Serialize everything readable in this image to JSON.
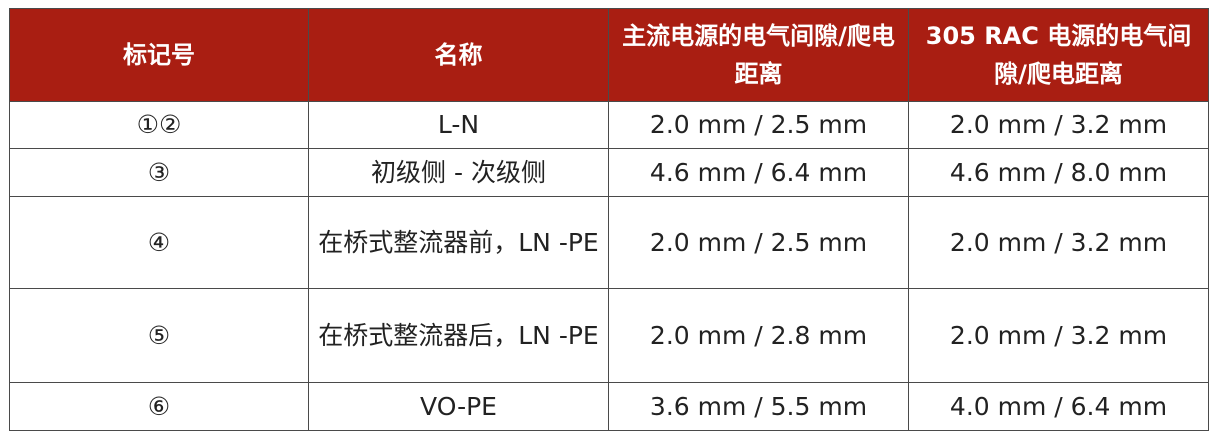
{
  "table": {
    "headers": [
      "标记号",
      "名称",
      "主流电源的电气间隙/爬电距离",
      "305 RAC 电源的电气间隙/爬电距离"
    ],
    "header_color": "#A91E12",
    "rows": [
      [
        "①②",
        "L-N",
        "2.0 mm / 2.5 mm",
        "2.0 mm / 3.2 mm"
      ],
      [
        "③",
        "初级侧 - 次级侧",
        "4.6 mm / 6.4 mm",
        "4.6 mm / 8.0 mm"
      ],
      [
        "④",
        "在桥式整流器前，LN -PE",
        "2.0 mm / 2.5 mm",
        "2.0 mm / 3.2 mm"
      ],
      [
        "⑤",
        "在桥式整流器后，LN -PE",
        "2.0 mm / 2.8 mm",
        "2.0 mm / 3.2 mm"
      ],
      [
        "⑥",
        "VO-PE",
        "3.6 mm / 5.5 mm",
        "4.0 mm / 6.4 mm"
      ]
    ]
  }
}
